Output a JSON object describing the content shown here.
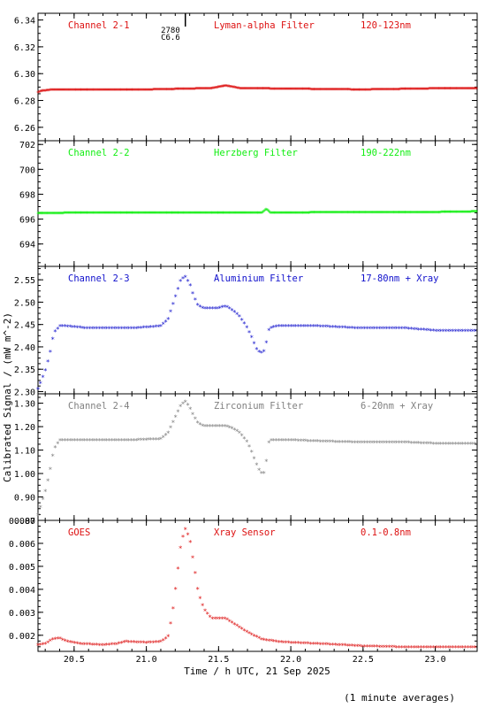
{
  "x_axis_label": "Time / h UTC, 21 Sep 2025",
  "y_axis_label": "Calibrated Signal / (mW m^-2)",
  "footnote": "(1 minute averages)",
  "marker": {
    "x": 21.27,
    "label_top": "2780",
    "label_bottom": "C6.6"
  },
  "chart_data": [
    {
      "type": "scatter",
      "panel_id": "ch21",
      "color": "#dd1111",
      "labels": {
        "channel": "Channel 2-1",
        "filter": "Lyman-alpha Filter",
        "band": "120-123nm"
      },
      "xlim": [
        20.25,
        23.29
      ],
      "ylim": [
        6.25,
        6.345
      ],
      "y_ticks": [
        6.26,
        6.28,
        6.3,
        6.32,
        6.34
      ],
      "x_ticks": [
        20.5,
        21.0,
        21.5,
        22.0,
        22.5,
        23.0
      ],
      "x": [
        20.25,
        20.27,
        20.35,
        21.0,
        21.45,
        21.55,
        21.65,
        22.5,
        23.1,
        23.29
      ],
      "y": [
        6.286,
        6.287,
        6.288,
        6.288,
        6.289,
        6.291,
        6.289,
        6.288,
        6.289,
        6.289
      ]
    },
    {
      "type": "scatter",
      "panel_id": "ch22",
      "color": "#11ee11",
      "labels": {
        "channel": "Channel 2-2",
        "filter": "Herzberg Filter",
        "band": "190-222nm"
      },
      "xlim": [
        20.25,
        23.29
      ],
      "ylim": [
        692.2,
        702.3
      ],
      "y_ticks": [
        694,
        696,
        698,
        700,
        702
      ],
      "x_ticks": [
        20.5,
        21.0,
        21.5,
        22.0,
        22.5,
        23.0
      ],
      "x": [
        20.25,
        20.5,
        21.0,
        21.5,
        21.8,
        21.83,
        21.86,
        22.5,
        23.0,
        23.29
      ],
      "y": [
        696.45,
        696.5,
        696.5,
        696.5,
        696.5,
        696.8,
        696.5,
        696.55,
        696.55,
        696.6
      ]
    },
    {
      "type": "scatter",
      "panel_id": "ch23",
      "color": "#1111cc",
      "labels": {
        "channel": "Channel 2-3",
        "filter": "Aluminium Filter",
        "band": "17-80nm + Xray"
      },
      "xlim": [
        20.25,
        23.29
      ],
      "ylim": [
        2.295,
        2.58
      ],
      "y_ticks": [
        2.3,
        2.35,
        2.4,
        2.45,
        2.5,
        2.55
      ],
      "x_ticks": [
        20.5,
        21.0,
        21.5,
        22.0,
        22.5,
        23.0
      ],
      "x": [
        20.25,
        20.27,
        20.3,
        20.33,
        20.36,
        20.4,
        20.45,
        20.6,
        20.9,
        21.1,
        21.15,
        21.18,
        21.21,
        21.24,
        21.27,
        21.3,
        21.33,
        21.36,
        21.4,
        21.45,
        21.5,
        21.55,
        21.6,
        21.65,
        21.7,
        21.73,
        21.76,
        21.79,
        21.82,
        21.85,
        21.9,
        22.0,
        22.2,
        22.5,
        22.8,
        23.0,
        23.29
      ],
      "y": [
        2.305,
        2.32,
        2.345,
        2.38,
        2.43,
        2.445,
        2.445,
        2.44,
        2.44,
        2.445,
        2.46,
        2.49,
        2.52,
        2.55,
        2.555,
        2.54,
        2.51,
        2.49,
        2.485,
        2.485,
        2.485,
        2.49,
        2.48,
        2.465,
        2.44,
        2.42,
        2.395,
        2.385,
        2.39,
        2.44,
        2.445,
        2.445,
        2.445,
        2.44,
        2.44,
        2.435,
        2.435
      ]
    },
    {
      "type": "scatter",
      "panel_id": "ch24",
      "color": "#808080",
      "labels": {
        "channel": "Channel 2-4",
        "filter": "Zirconium Filter",
        "band": "6-20nm + Xray"
      },
      "xlim": [
        20.25,
        23.29
      ],
      "ylim": [
        0.8,
        1.34
      ],
      "y_ticks": [
        0.8,
        0.9,
        1.0,
        1.1,
        1.2,
        1.3
      ],
      "x_ticks": [
        20.5,
        21.0,
        21.5,
        22.0,
        22.5,
        23.0
      ],
      "x": [
        20.25,
        20.27,
        20.3,
        20.33,
        20.36,
        20.4,
        20.45,
        20.6,
        20.9,
        21.1,
        21.15,
        21.18,
        21.21,
        21.24,
        21.27,
        21.3,
        21.33,
        21.36,
        21.4,
        21.45,
        21.5,
        21.55,
        21.6,
        21.65,
        21.7,
        21.73,
        21.76,
        21.79,
        21.82,
        21.85,
        21.9,
        22.0,
        22.2,
        22.5,
        22.8,
        23.0,
        23.29
      ],
      "y": [
        0.82,
        0.86,
        0.92,
        1.0,
        1.1,
        1.14,
        1.14,
        1.14,
        1.14,
        1.145,
        1.17,
        1.21,
        1.25,
        1.29,
        1.305,
        1.28,
        1.24,
        1.21,
        1.2,
        1.2,
        1.2,
        1.2,
        1.19,
        1.17,
        1.13,
        1.09,
        1.04,
        1.0,
        1.0,
        1.14,
        1.14,
        1.14,
        1.135,
        1.13,
        1.13,
        1.125,
        1.125
      ]
    },
    {
      "type": "scatter",
      "panel_id": "goes",
      "color": "#dd1111",
      "labels": {
        "channel": "GOES",
        "filter": "Xray Sensor",
        "band": "0.1-0.8nm"
      },
      "xlim": [
        20.25,
        23.29
      ],
      "ylim": [
        0.0013,
        0.007
      ],
      "y_ticks": [
        0.002,
        0.003,
        0.004,
        0.005,
        0.006,
        0.007
      ],
      "x_ticks": [
        20.5,
        21.0,
        21.5,
        22.0,
        22.5,
        23.0
      ],
      "x": [
        20.25,
        20.3,
        20.35,
        20.4,
        20.45,
        20.55,
        20.7,
        20.8,
        20.85,
        21.0,
        21.1,
        21.15,
        21.18,
        21.21,
        21.24,
        21.27,
        21.3,
        21.33,
        21.36,
        21.4,
        21.45,
        21.55,
        21.6,
        21.7,
        21.8,
        21.9,
        22.0,
        22.2,
        22.5,
        22.8,
        23.0,
        23.29
      ],
      "y": [
        0.00155,
        0.0016,
        0.0018,
        0.00185,
        0.0017,
        0.0016,
        0.00155,
        0.0016,
        0.0017,
        0.00165,
        0.0017,
        0.0019,
        0.0029,
        0.0044,
        0.006,
        0.0066,
        0.0062,
        0.005,
        0.0038,
        0.0031,
        0.0027,
        0.0027,
        0.0025,
        0.0021,
        0.0018,
        0.0017,
        0.00165,
        0.0016,
        0.0015,
        0.00145,
        0.00145,
        0.00145
      ]
    }
  ]
}
